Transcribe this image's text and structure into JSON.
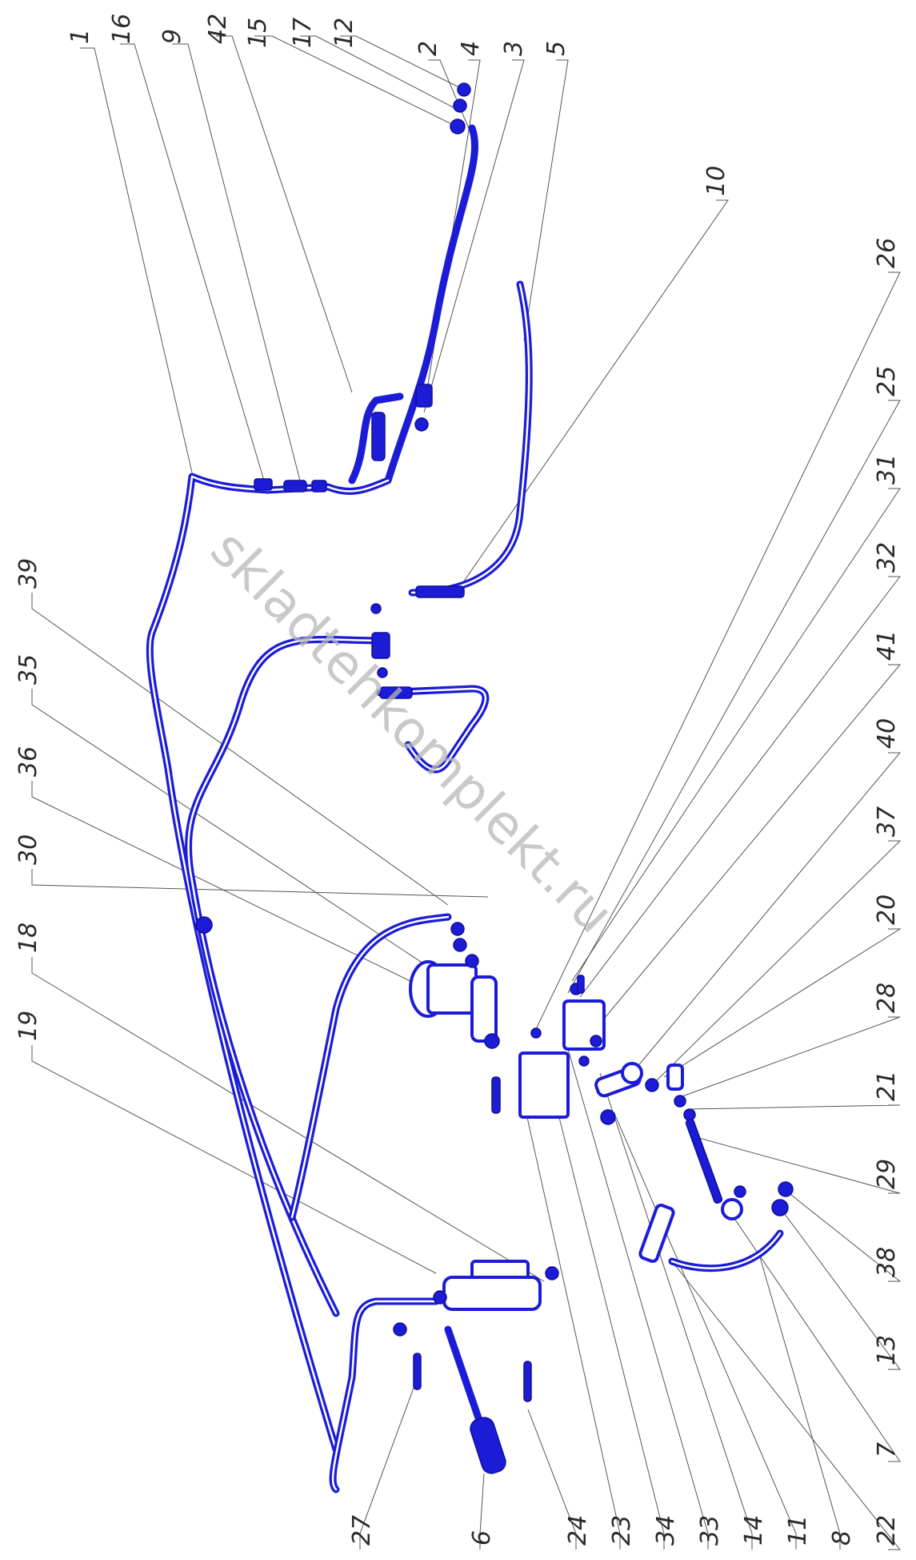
{
  "watermark": "skladtehkomplekt.ru",
  "colors": {
    "drawing": "#1c1cd6",
    "labels": "#2a2a2a",
    "watermark": "#b8b8b8"
  },
  "callouts": {
    "c1": "1",
    "c16": "16",
    "c9": "9",
    "c42": "42",
    "c15": "15",
    "c17": "17",
    "c12": "12",
    "c2": "2",
    "c4": "4",
    "c3": "3",
    "c5": "5",
    "c10": "10",
    "c26": "26",
    "c25": "25",
    "c31": "31",
    "c32": "32",
    "c41": "41",
    "c40": "40",
    "c37": "37",
    "c20": "20",
    "c28": "28",
    "c21": "21",
    "c29": "29",
    "c38": "38",
    "c13": "13",
    "c7": "7",
    "c8": "8",
    "c22": "22",
    "c11": "11",
    "c14": "14",
    "c33": "33",
    "c34": "34",
    "c23": "23",
    "c24": "24",
    "c6": "6",
    "c27": "27",
    "c39": "39",
    "c35": "35",
    "c36": "36",
    "c30": "30",
    "c18": "18",
    "c19": "19"
  }
}
